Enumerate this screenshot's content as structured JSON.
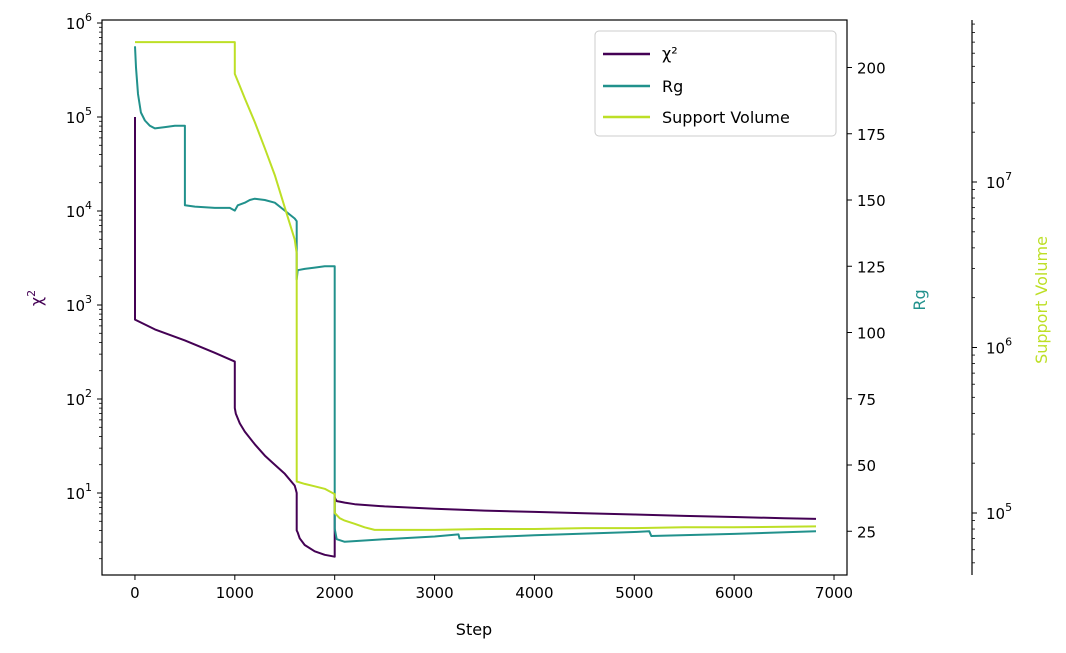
{
  "chart_data": {
    "type": "line",
    "xlabel": "Step",
    "ylabel": "χ²",
    "y2label": "Rg",
    "y3label": "Support Volume",
    "xlim": [
      -330,
      7130
    ],
    "xticks": [
      "0",
      "1000",
      "2000",
      "3000",
      "4000",
      "5000",
      "6000",
      "7000"
    ],
    "y1_scale": "log",
    "y1_ticks": [
      {
        "base": "10",
        "exp": "6"
      },
      {
        "base": "10",
        "exp": "5"
      },
      {
        "base": "10",
        "exp": "4"
      },
      {
        "base": "10",
        "exp": "3"
      },
      {
        "base": "10",
        "exp": "2"
      },
      {
        "base": "10",
        "exp": "1"
      }
    ],
    "y2_ticks": [
      "200",
      "175",
      "150",
      "125",
      "100",
      "75",
      "50",
      "25"
    ],
    "y3_scale": "log",
    "y3_ticks": [
      {
        "base": "10",
        "exp": "7"
      },
      {
        "base": "10",
        "exp": "6"
      },
      {
        "base": "10",
        "exp": "5"
      }
    ],
    "legend_position": "top-right",
    "colors": {
      "chi2": "#440154",
      "rg": "#21918c",
      "support": "#bddf26"
    },
    "series": [
      {
        "name": "χ²",
        "axis": "left-log",
        "x": [
          0,
          0,
          0,
          200,
          500,
          800,
          1000,
          1000,
          1010,
          1050,
          1100,
          1200,
          1300,
          1400,
          1500,
          1600,
          1610,
          1620,
          1620,
          1630,
          1650,
          1700,
          1800,
          1900,
          2000,
          2000,
          2010,
          2020,
          2050,
          2100,
          2200,
          2500,
          3000,
          3500,
          4000,
          4500,
          5000,
          5500,
          6000,
          6500,
          6820
        ],
        "y": [
          100000,
          1200,
          700,
          550,
          420,
          310,
          250,
          80,
          70,
          55,
          45,
          33,
          25,
          20,
          16,
          12,
          11,
          10,
          4,
          3.8,
          3.3,
          2.8,
          2.4,
          2.2,
          2.1,
          9,
          8.5,
          8.2,
          8.1,
          7.9,
          7.6,
          7.2,
          6.8,
          6.5,
          6.3,
          6.1,
          5.9,
          5.7,
          5.55,
          5.4,
          5.3
        ]
      },
      {
        "name": "Rg",
        "axis": "right",
        "x": [
          0,
          10,
          30,
          60,
          100,
          150,
          200,
          300,
          400,
          500,
          500,
          600,
          800,
          950,
          1000,
          1030,
          1100,
          1150,
          1200,
          1300,
          1400,
          1500,
          1600,
          1620,
          1620,
          1630,
          1700,
          1800,
          1900,
          2000,
          2000,
          2010,
          2020,
          2100,
          2500,
          3000,
          3240,
          3250,
          4000,
          5000,
          5150,
          5170,
          6000,
          6820
        ],
        "y": [
          208,
          200,
          190,
          183,
          180,
          178,
          177,
          177.5,
          178,
          178,
          148,
          147.5,
          147,
          147,
          146,
          148,
          149,
          150,
          150.5,
          150,
          149,
          146,
          143,
          142,
          120,
          123.5,
          124,
          124.5,
          125,
          125,
          26,
          24,
          22,
          21,
          22,
          23,
          23.8,
          22.3,
          23.5,
          24.7,
          25,
          23.2,
          24,
          25
        ]
      },
      {
        "name": "Support Volume",
        "axis": "right-log",
        "x": [
          0,
          1000,
          1000,
          1050,
          1100,
          1200,
          1300,
          1400,
          1500,
          1600,
          1620,
          1620,
          1700,
          1800,
          1900,
          2000,
          2000,
          2050,
          2100,
          2200,
          2300,
          2400,
          2600,
          3000,
          3500,
          4000,
          4500,
          5000,
          5500,
          6000,
          6500,
          6820
        ],
        "y": [
          70000000,
          70000000,
          45000000,
          38000000,
          32000000,
          23000000,
          16000000,
          11000000,
          7000000,
          4500000,
          3700000,
          155000,
          150000,
          145000,
          140000,
          130000,
          100000,
          93000,
          90000,
          86000,
          82000,
          79000,
          79000,
          79000,
          80000,
          80000,
          81000,
          81000,
          82000,
          82000,
          82500,
          83000
        ]
      }
    ]
  }
}
